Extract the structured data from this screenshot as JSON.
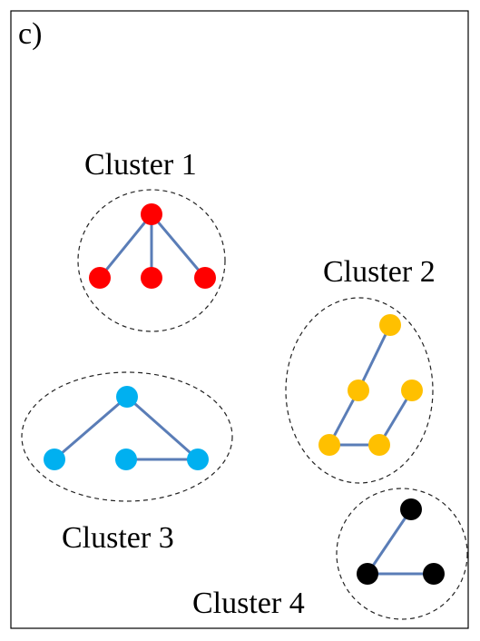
{
  "panel_label": "c)",
  "clusters": [
    {
      "label": "Cluster 1",
      "node_color": "#ff0000",
      "nodes": [
        "top",
        "left",
        "center",
        "right"
      ],
      "edges": [
        [
          "top",
          "left"
        ],
        [
          "top",
          "center"
        ],
        [
          "top",
          "right"
        ]
      ]
    },
    {
      "label": "Cluster 2",
      "node_color": "#ffc000",
      "nodes": [
        "top",
        "upper-left",
        "upper-right",
        "bottom-left",
        "bottom-right"
      ],
      "edges": [
        [
          "top",
          "upper-left"
        ],
        [
          "upper-left",
          "bottom-left"
        ],
        [
          "bottom-left",
          "bottom-right"
        ],
        [
          "bottom-right",
          "upper-right"
        ]
      ]
    },
    {
      "label": "Cluster 3",
      "node_color": "#00b0f0",
      "nodes": [
        "top",
        "left",
        "middle",
        "right"
      ],
      "edges": [
        [
          "top",
          "left"
        ],
        [
          "top",
          "right"
        ],
        [
          "middle",
          "right"
        ]
      ]
    },
    {
      "label": "Cluster 4",
      "node_color": "#000000",
      "nodes": [
        "top",
        "bottom-left",
        "bottom-right"
      ],
      "edges": [
        [
          "top",
          "bottom-left"
        ],
        [
          "bottom-left",
          "bottom-right"
        ]
      ]
    }
  ],
  "edge_color": "#5a7db7"
}
